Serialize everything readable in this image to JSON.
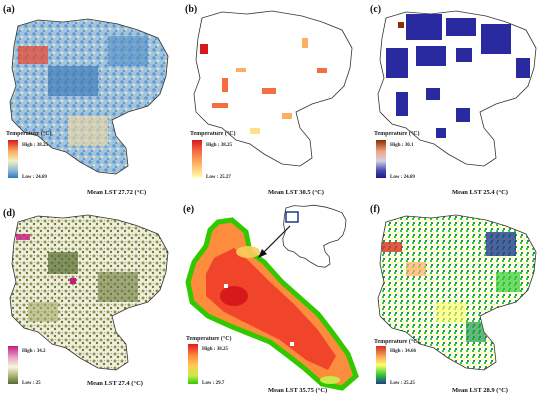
{
  "panels": [
    {
      "label": "(a)",
      "legend_title": "Temperature (°C)",
      "high": "High : 38.25",
      "low": "Low : 24.69",
      "mean": "Mean LST 27.72 (°C)"
    },
    {
      "label": "(b)",
      "legend_title": "Temperature (°C)",
      "high": "High : 38.25",
      "low": "Low : 25.27",
      "mean": "Mean LST 30.5 (°C)"
    },
    {
      "label": "(c)",
      "legend_title": "Temperature (°C)",
      "high": "High : 30.1",
      "low": "Low : 24.69",
      "mean": "Mean LST 25.4 (°C)"
    },
    {
      "label": "(d)",
      "legend_title": "",
      "high": "High : 34.2",
      "low": "Low : 25",
      "mean": "Mean LST 27.4 (°C)"
    },
    {
      "label": "(e)",
      "legend_title": "Temperature (°C)",
      "high": "High : 38.25",
      "low": "Low : 29.7",
      "mean": "Mean LST 35.75 (°C)"
    },
    {
      "label": "(f)",
      "legend_title": "Temperature (°C)",
      "high": "High : 34.66",
      "low": "Low : 25.25",
      "mean": "Mean LST 28.9 (°C)"
    }
  ],
  "colors": {
    "ramp_a": [
      "#d7191c",
      "#fdae61",
      "#f3efc2",
      "#8db9d9",
      "#2c7bb6"
    ],
    "ramp_b": [
      "#d7191c",
      "#f46d43",
      "#fdae61",
      "#fee08b",
      "#ffffbf"
    ],
    "ramp_c": [
      "#8c2d04",
      "#f4a582",
      "#d1d1e6",
      "#4a4ab0",
      "#1a1a8c"
    ],
    "ramp_d": [
      "#c51b7d",
      "#e9a3c9",
      "#f7f7e0",
      "#a6ad6e",
      "#556b2f"
    ],
    "ramp_e": [
      "#e31a1c",
      "#fd8d3c",
      "#fecc5c",
      "#c7e94a",
      "#31c800"
    ],
    "ramp_f": [
      "#d7301f",
      "#fdae61",
      "#ffff66",
      "#33cc33",
      "#1f3c8a"
    ]
  }
}
